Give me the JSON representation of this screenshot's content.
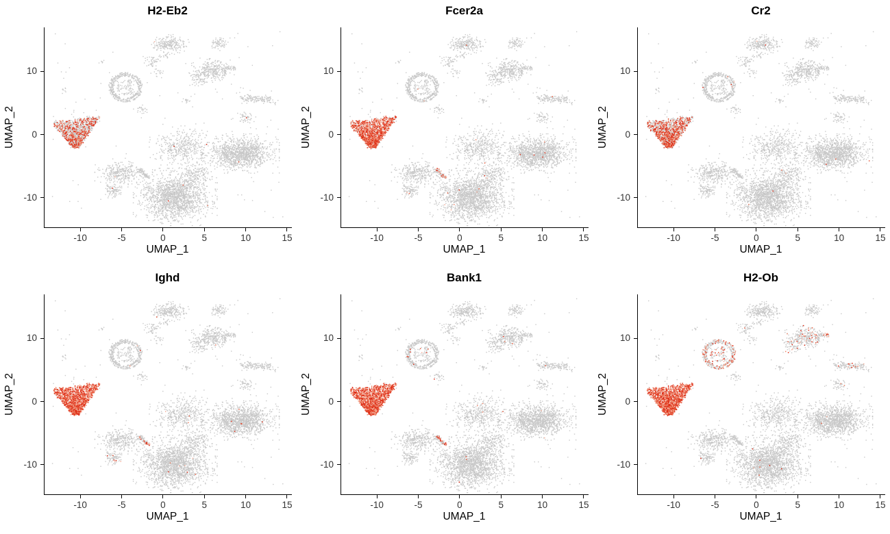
{
  "figure": {
    "xlabel": "UMAP_1",
    "ylabel": "UMAP_2",
    "x_tick_values": [
      -10,
      -5,
      0,
      5,
      10,
      15
    ],
    "y_tick_values": [
      -10,
      0,
      10
    ],
    "xlim": [
      -14.4,
      15.5
    ],
    "ylim": [
      -14.7,
      17.0
    ],
    "colors": {
      "background": "#ffffff",
      "point_gray": "#c8c8c8",
      "axis": "#000000",
      "tick_text": "#333333",
      "red_ramp": [
        "#f4b09c",
        "#ee8468",
        "#e65839",
        "#de2c15"
      ]
    }
  },
  "chart_data": {
    "type": "scatter",
    "layout": "2x3 grid of UMAP feature plots (gene expression overlays, gray = not expressing, red = expressing)",
    "xlabel": "UMAP_1",
    "ylabel": "UMAP_2",
    "xlim": [
      -14.4,
      15.5
    ],
    "ylim": [
      -14.7,
      17.0
    ],
    "panels": [
      {
        "gene": "H2-Eb2",
        "red": {
          "0": 0.32
        },
        "scatter": 0.0022
      },
      {
        "gene": "Fcer2a",
        "red": {
          "0": 0.78,
          "19": 0.25
        },
        "scatter": 0.0035
      },
      {
        "gene": "Cr2",
        "red": {
          "0": 0.45
        },
        "scatter": 0.0015
      },
      {
        "gene": "Ighd",
        "red": {
          "0": 0.97,
          "19": 0.35,
          "18": 0.06
        },
        "scatter": 0.003
      },
      {
        "gene": "Bank1",
        "red": {
          "0": 0.96,
          "19": 0.3,
          "2": 0.02
        },
        "scatter": 0.0028
      },
      {
        "gene": "H2-Ob",
        "red": {
          "0": 0.95,
          "2": 0.22,
          "8": 0.12,
          "9": 0.15,
          "10": 0.1,
          "11": 0.05,
          "12": 0.08
        },
        "scatter": 0.0035
      }
    ],
    "clusters": [
      {
        "name": "b-cell-main-left",
        "shape": "fan",
        "x": -10.6,
        "y": 0.2,
        "sx": 3.0,
        "sy": 2.2,
        "n": 1600
      },
      {
        "name": "speck-left-top",
        "shape": "gauss",
        "x": -12.0,
        "y": 7.0,
        "sx": 0.15,
        "sy": 0.15,
        "n": 8
      },
      {
        "name": "ring-cluster",
        "shape": "ring",
        "x": -4.6,
        "y": 7.5,
        "sx": 1.9,
        "sy": 2.2,
        "n": 480
      },
      {
        "name": "speck-a",
        "shape": "gauss",
        "x": -2.6,
        "y": 3.9,
        "sx": 0.4,
        "sy": 0.3,
        "n": 25
      },
      {
        "name": "small-top-a",
        "shape": "gauss",
        "x": -1.4,
        "y": 11.7,
        "sx": 0.5,
        "sy": 0.4,
        "n": 45
      },
      {
        "name": "top-cluster",
        "shape": "gauss",
        "x": 0.6,
        "y": 14.3,
        "sx": 0.95,
        "sy": 0.6,
        "n": 230
      },
      {
        "name": "speck-b",
        "shape": "gauss",
        "x": 0.2,
        "y": 12.6,
        "sx": 0.4,
        "sy": 0.3,
        "n": 18
      },
      {
        "name": "top-right-cluster",
        "shape": "gauss",
        "x": 6.7,
        "y": 14.5,
        "sx": 0.55,
        "sy": 0.45,
        "n": 70
      },
      {
        "name": "comet-cluster",
        "shape": "gauss",
        "x": 5.8,
        "y": 10.1,
        "sx": 1.05,
        "sy": 0.75,
        "n": 300
      },
      {
        "name": "comet-sub",
        "shape": "gauss",
        "x": 4.2,
        "y": 8.8,
        "sx": 0.5,
        "sy": 0.5,
        "n": 50
      },
      {
        "name": "comet-tail",
        "shape": "hstrip",
        "x": 7.9,
        "y": 10.5,
        "sx": 0.8,
        "sy": 0.25,
        "n": 40
      },
      {
        "name": "sliver-right",
        "shape": "hstrip",
        "x": 11.1,
        "y": 5.65,
        "sx": 1.85,
        "sy": 0.27,
        "n": 130
      },
      {
        "name": "small-right",
        "shape": "gauss",
        "x": 9.8,
        "y": 2.7,
        "sx": 0.55,
        "sy": 0.4,
        "n": 45
      },
      {
        "name": "right-large-cluster",
        "shape": "gauss",
        "x": 9.3,
        "y": -3.0,
        "sx": 1.8,
        "sy": 1.2,
        "n": 1250
      },
      {
        "name": "central-diffuse",
        "shape": "gauss",
        "x": 2.3,
        "y": -2.0,
        "sx": 1.55,
        "sy": 1.3,
        "n": 430
      },
      {
        "name": "bottom-large-cluster",
        "shape": "gauss",
        "x": 1.4,
        "y": -9.9,
        "sx": 1.95,
        "sy": 1.75,
        "n": 1750
      },
      {
        "name": "bottom-neck",
        "shape": "gauss",
        "x": 3.9,
        "y": -6.3,
        "sx": 0.8,
        "sy": 0.8,
        "n": 130
      },
      {
        "name": "left-bottom-diffuse",
        "shape": "gauss",
        "x": -5.2,
        "y": -6.1,
        "sx": 1.2,
        "sy": 0.9,
        "n": 330
      },
      {
        "name": "left-bottom-small",
        "shape": "gauss",
        "x": -6.0,
        "y": -8.9,
        "sx": 0.5,
        "sy": 0.5,
        "n": 90
      },
      {
        "name": "diag-sliver",
        "shape": "diag",
        "x": -2.9,
        "y": -5.4,
        "sx": 1.1,
        "sy": -1.6,
        "n": 70
      },
      {
        "name": "speck-c",
        "shape": "gauss",
        "x": 2.7,
        "y": 5.4,
        "sx": 0.3,
        "sy": 0.25,
        "n": 14
      },
      {
        "name": "speck-right-edge",
        "shape": "gauss",
        "x": 13.4,
        "y": 5.0,
        "sx": 0.3,
        "sy": 0.2,
        "n": 8
      },
      {
        "name": "speck-left-upper",
        "shape": "gauss",
        "x": -7.6,
        "y": 11.6,
        "sx": 0.2,
        "sy": 0.15,
        "n": 6
      },
      {
        "name": "speck-d",
        "shape": "gauss",
        "x": -0.6,
        "y": 9.9,
        "sx": 0.5,
        "sy": 0.4,
        "n": 18
      },
      {
        "name": "background-noise",
        "shape": "uniform",
        "x": 0.5,
        "y": 1.5,
        "sx": 14,
        "sy": 15,
        "n": 130
      }
    ]
  }
}
